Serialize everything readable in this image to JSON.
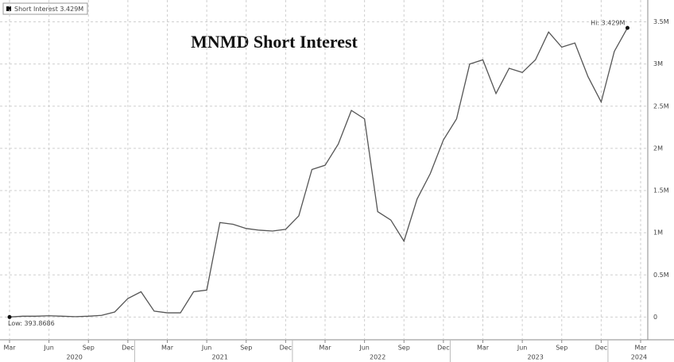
{
  "chart_data": {
    "type": "line",
    "title": "MNMD Short Interest",
    "legend_label": "Short Interest 3.429M",
    "annotations": {
      "low": "Low: 393.8686",
      "high": "Hi: 3.429M"
    },
    "x": [
      "2020-03",
      "2020-04",
      "2020-05",
      "2020-06",
      "2020-07",
      "2020-08",
      "2020-09",
      "2020-10",
      "2020-11",
      "2020-12",
      "2021-01",
      "2021-02",
      "2021-03",
      "2021-04",
      "2021-05",
      "2021-06",
      "2021-07",
      "2021-08",
      "2021-09",
      "2021-10",
      "2021-11",
      "2021-12",
      "2022-01",
      "2022-02",
      "2022-03",
      "2022-04",
      "2022-05",
      "2022-06",
      "2022-07",
      "2022-08",
      "2022-09",
      "2022-10",
      "2022-11",
      "2022-12",
      "2023-01",
      "2023-02",
      "2023-03",
      "2023-04",
      "2023-05",
      "2023-06",
      "2023-07",
      "2023-08",
      "2023-09",
      "2023-10",
      "2023-11",
      "2023-12",
      "2024-01",
      "2024-02"
    ],
    "series": [
      {
        "name": "Short Interest",
        "color": "#555555",
        "values": [
          393.8686,
          10000,
          10000,
          15000,
          10000,
          5000,
          10000,
          20000,
          60000,
          220000,
          300000,
          70000,
          50000,
          50000,
          300000,
          320000,
          1120000,
          1100000,
          1050000,
          1030000,
          1020000,
          1040000,
          1200000,
          1750000,
          1800000,
          2050000,
          2450000,
          2350000,
          1250000,
          1150000,
          900000,
          1400000,
          1700000,
          2100000,
          2350000,
          3000000,
          3050000,
          2650000,
          2950000,
          2900000,
          3050000,
          3380000,
          3200000,
          3250000,
          2850000,
          2550000,
          3150000,
          3429000
        ]
      }
    ],
    "xlim": [
      "2020-03",
      "2024-03"
    ],
    "xticks": [
      {
        "value": "2020-03",
        "label": "Mar"
      },
      {
        "value": "2020-06",
        "label": "Jun"
      },
      {
        "value": "2020-09",
        "label": "Sep"
      },
      {
        "value": "2020-12",
        "label": "Dec"
      },
      {
        "value": "2021-03",
        "label": "Mar"
      },
      {
        "value": "2021-06",
        "label": "Jun"
      },
      {
        "value": "2021-09",
        "label": "Sep"
      },
      {
        "value": "2021-12",
        "label": "Dec"
      },
      {
        "value": "2022-03",
        "label": "Mar"
      },
      {
        "value": "2022-06",
        "label": "Jun"
      },
      {
        "value": "2022-09",
        "label": "Sep"
      },
      {
        "value": "2022-12",
        "label": "Dec"
      },
      {
        "value": "2023-03",
        "label": "Mar"
      },
      {
        "value": "2023-06",
        "label": "Jun"
      },
      {
        "value": "2023-09",
        "label": "Sep"
      },
      {
        "value": "2023-12",
        "label": "Dec"
      },
      {
        "value": "2024-03",
        "label": "Mar"
      }
    ],
    "year_labels": [
      "2020",
      "2021",
      "2022",
      "2023",
      "2024"
    ],
    "ylim": [
      -100000,
      3750000
    ],
    "yticks": [
      0,
      {
        "value": 500000,
        "label": "0.5M"
      },
      {
        "value": 1000000,
        "label": "1M"
      },
      {
        "value": 1500000,
        "label": "1.5M"
      },
      {
        "value": 2000000,
        "label": "2M"
      },
      {
        "value": 2500000,
        "label": "2.5M"
      },
      {
        "value": 3000000,
        "label": "3M"
      },
      {
        "value": 3500000,
        "label": "3.5M"
      }
    ],
    "grid": true
  }
}
